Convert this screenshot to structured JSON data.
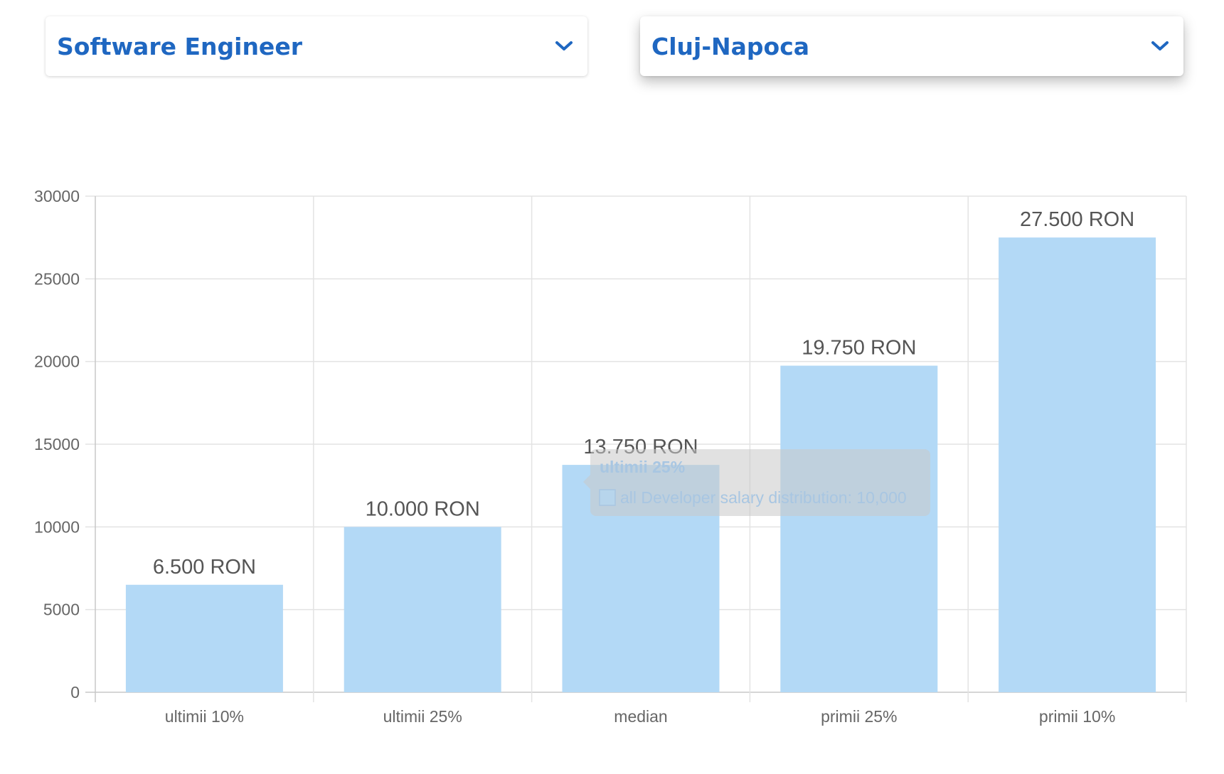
{
  "filters": {
    "role": {
      "value": "Software Engineer",
      "icon": "chevron-down-icon"
    },
    "city": {
      "value": "Cluj-Napoca",
      "icon": "chevron-down-icon"
    }
  },
  "colors": {
    "accent": "#1f67c1",
    "bar": "#b3d9f6",
    "grid": "#e3e3e3",
    "tooltip_bg": "#c9c9c9"
  },
  "chart_data": {
    "type": "bar",
    "categories": [
      "ultimii 10%",
      "ultimii 25%",
      "median",
      "primii 25%",
      "primii 10%"
    ],
    "values": [
      6500,
      10000,
      13750,
      19750,
      27500
    ],
    "value_labels": [
      "6.500 RON",
      "10.000 RON",
      "13.750 RON",
      "19.750 RON",
      "27.500 RON"
    ],
    "yticks": [
      "0",
      "5000",
      "10000",
      "15000",
      "20000",
      "25000",
      "30000"
    ],
    "ylim": [
      0,
      30000
    ],
    "grid": true,
    "tooltip": {
      "title": "ultimii 25%",
      "body": "all Developer salary distribution: 10,000"
    }
  }
}
